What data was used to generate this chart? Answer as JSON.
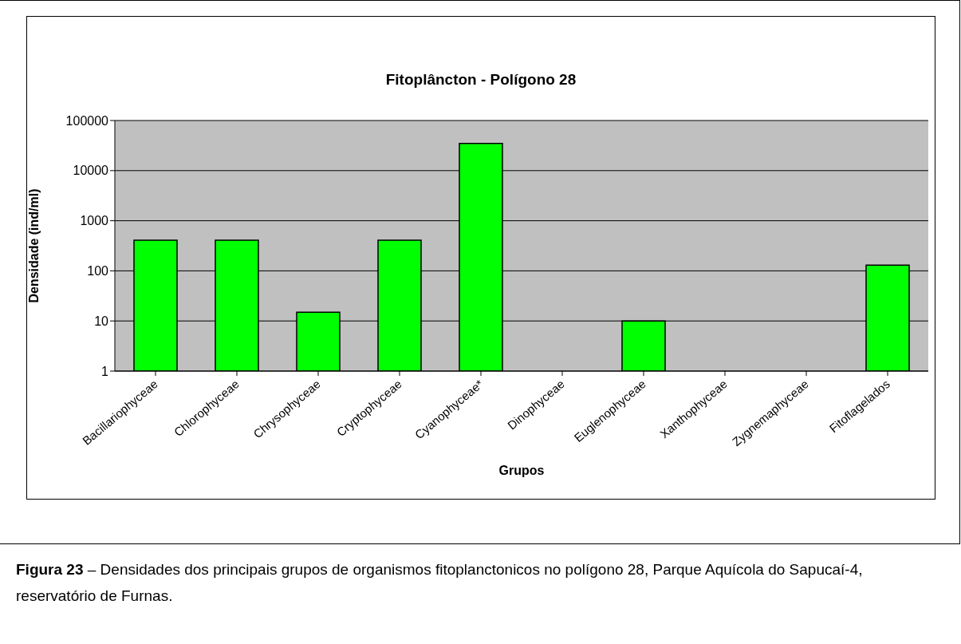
{
  "chart_data": {
    "type": "bar",
    "title": "Fitoplâncton - Polígono 28",
    "xlabel": "Grupos",
    "ylabel": "Densidade (ind/ml)",
    "categories": [
      "Bacillariophyceae",
      "Chlorophyceae",
      "Chrysophyceae",
      "Cryptophyceae",
      "Cyanophyceae*",
      "Dinophyceae",
      "Euglenophyceae",
      "Xanthophyceae",
      "Zygnemaphyceae",
      "Fitoflagelados"
    ],
    "values": [
      410,
      410,
      15,
      410,
      35000,
      null,
      10,
      null,
      null,
      130
    ],
    "color": "#00ff00",
    "log": "y",
    "ylim": [
      1,
      100000
    ],
    "yticks": [
      1,
      10,
      100,
      1000,
      10000,
      100000
    ],
    "grid": "y",
    "annotations": [
      "Figura 23",
      "– Densidades dos principais grupos de organismos fitoplanctonicos no polígono 28, Parque Aquícola do Sapucaí-4, reservatório de Furnas."
    ]
  }
}
